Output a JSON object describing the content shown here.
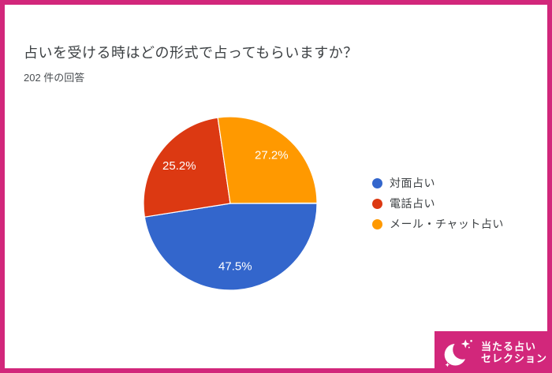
{
  "page": {
    "border_color": "#D2277B",
    "background": "#FFFFFF"
  },
  "header": {
    "title": "占いを受ける時はどの形式で占ってもらいますか？",
    "response_count": "202 件の回答"
  },
  "chart_data": {
    "type": "pie",
    "title": "占いを受ける時はどの形式で占ってもらいますか？",
    "subtitle": "202 件の回答",
    "total_responses": 202,
    "legend_position": "right",
    "start_angle_deg_cw_from_top": 90,
    "direction": "clockwise",
    "slice_label_color": "#FFFFFF",
    "separator_color": "#FFFFFF",
    "slices": [
      {
        "label": "対面占い",
        "percent": 47.5,
        "display": "47.5%",
        "color": "#3366CC"
      },
      {
        "label": "電話占い",
        "percent": 25.2,
        "display": "25.2%",
        "color": "#DC3912"
      },
      {
        "label": "メール・チャット占い",
        "percent": 27.2,
        "display": "27.2%",
        "color": "#FF9900"
      }
    ]
  },
  "badge": {
    "line1": "当たる占い",
    "line2": "セレクション",
    "background": "#D2277B",
    "icon": "crescent-moon-with-sparkles-icon"
  }
}
